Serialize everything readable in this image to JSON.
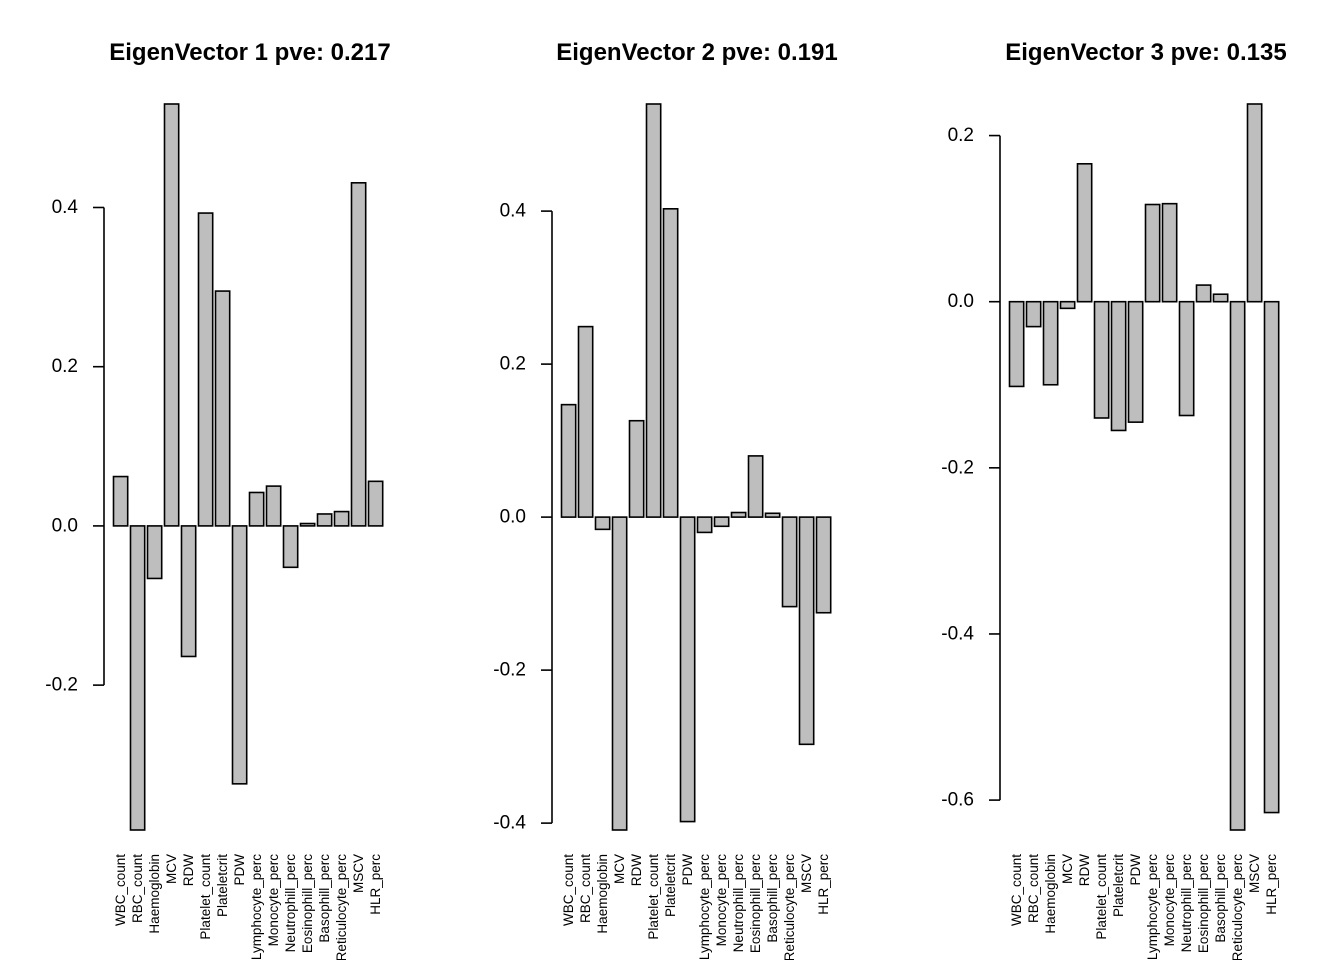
{
  "chart_data": [
    {
      "type": "bar",
      "title": "EigenVector 1 pve: 0.217",
      "categories": [
        "WBC_count",
        "RBC_count",
        "Haemoglobin",
        "MCV",
        "RDW",
        "Platelet_count",
        "Plateletcrit",
        "PDW",
        "Lymphocyte_perc",
        "Monocyte_perc",
        "Neutrophill_perc",
        "Eosinophill_perc",
        "Basophill_perc",
        "Reticulocyte_perc",
        "MSCV",
        "HLR_perc"
      ],
      "values": [
        0.062,
        -0.382,
        -0.066,
        0.53,
        -0.164,
        0.393,
        0.295,
        -0.324,
        0.042,
        0.05,
        -0.052,
        0.003,
        0.015,
        0.018,
        0.431,
        0.056
      ],
      "yticks": [
        -0.2,
        0.0,
        0.2,
        0.4
      ],
      "ytick_labels": [
        "-0.2",
        "0.0",
        "0.2",
        "0.4"
      ],
      "ylim": [
        -0.382,
        0.53
      ],
      "xlabel": "",
      "ylabel": ""
    },
    {
      "type": "bar",
      "title": "EigenVector 2 pve: 0.191",
      "categories": [
        "WBC_count",
        "RBC_count",
        "Haemoglobin",
        "MCV",
        "RDW",
        "Platelet_count",
        "Plateletcrit",
        "PDW",
        "Lymphocyte_perc",
        "Monocyte_perc",
        "Neutrophill_perc",
        "Eosinophill_perc",
        "Basophill_perc",
        "Reticulocyte_perc",
        "MSCV",
        "HLR_perc"
      ],
      "values": [
        0.147,
        0.249,
        -0.016,
        -0.409,
        0.126,
        0.54,
        0.403,
        -0.398,
        -0.02,
        -0.012,
        0.006,
        0.08,
        0.005,
        -0.117,
        -0.297,
        -0.125
      ],
      "yticks": [
        -0.4,
        -0.2,
        0.0,
        0.2,
        0.4
      ],
      "ytick_labels": [
        "-0.4",
        "-0.2",
        "0.0",
        "0.2",
        "0.4"
      ],
      "ylim": [
        -0.409,
        0.54
      ],
      "xlabel": "",
      "ylabel": ""
    },
    {
      "type": "bar",
      "title": "EigenVector 3 pve: 0.135",
      "categories": [
        "WBC_count",
        "RBC_count",
        "Haemoglobin",
        "MCV",
        "RDW",
        "Platelet_count",
        "Plateletcrit",
        "PDW",
        "Lymphocyte_perc",
        "Monocyte_perc",
        "Neutrophill_perc",
        "Eosinophill_perc",
        "Basophill_perc",
        "Reticulocyte_perc",
        "MSCV",
        "HLR_perc"
      ],
      "values": [
        -0.102,
        -0.03,
        -0.1,
        -0.008,
        0.166,
        -0.14,
        -0.155,
        -0.145,
        0.117,
        0.118,
        -0.137,
        0.02,
        0.009,
        -0.636,
        0.238,
        -0.615
      ],
      "yticks": [
        -0.6,
        -0.4,
        -0.2,
        0.0,
        0.2
      ],
      "ytick_labels": [
        "-0.6",
        "-0.4",
        "-0.2",
        "0.0",
        "0.2"
      ],
      "ylim": [
        -0.636,
        0.238
      ],
      "xlabel": "",
      "ylabel": ""
    }
  ]
}
